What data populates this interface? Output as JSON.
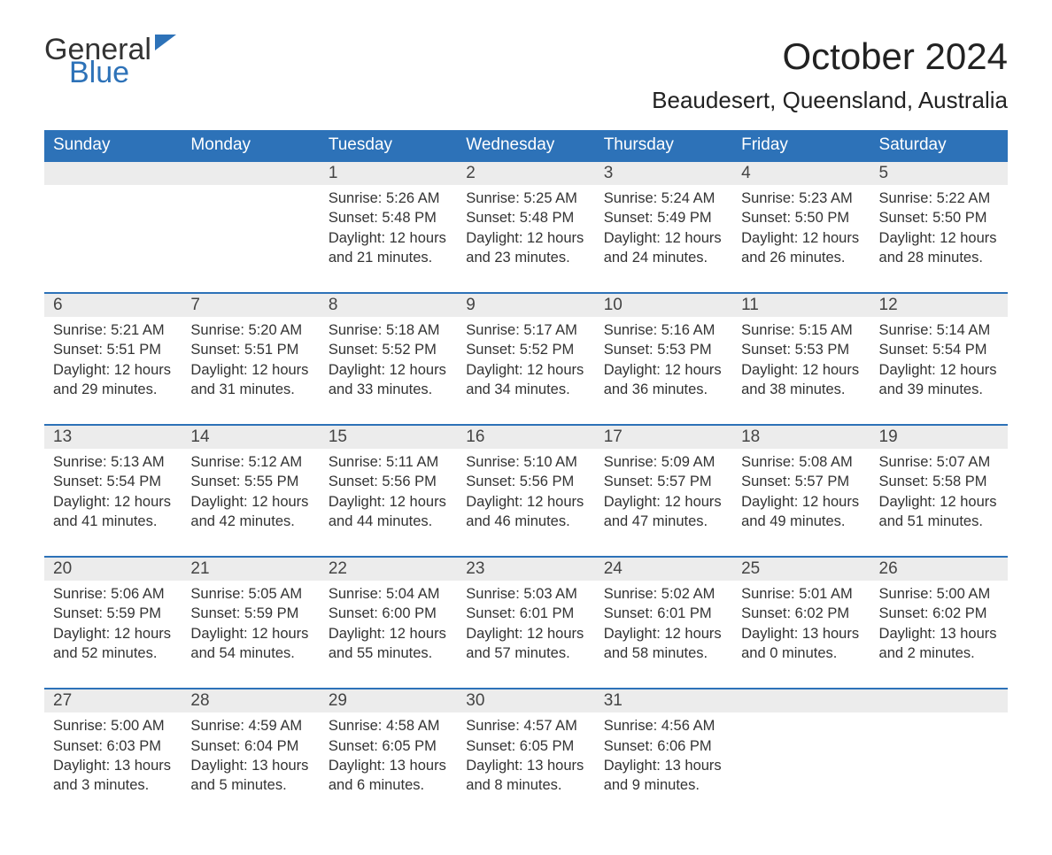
{
  "brand": {
    "word1": "General",
    "word2": "Blue"
  },
  "title": "October 2024",
  "location": "Beaudesert, Queensland, Australia",
  "colors": {
    "header_bg": "#2d72b8",
    "header_text": "#ffffff",
    "daynum_bg": "#ececec",
    "rule": "#2d72b8",
    "body_text": "#333333",
    "page_bg": "#ffffff"
  },
  "typography": {
    "title_fontsize": 42,
    "location_fontsize": 26,
    "dayhead_fontsize": 19,
    "body_fontsize": 16.5
  },
  "calendar": {
    "type": "table",
    "columns": [
      "Sunday",
      "Monday",
      "Tuesday",
      "Wednesday",
      "Thursday",
      "Friday",
      "Saturday"
    ],
    "weeks": [
      [
        null,
        null,
        {
          "n": "1",
          "sunrise": "Sunrise: 5:26 AM",
          "sunset": "Sunset: 5:48 PM",
          "d1": "Daylight: 12 hours",
          "d2": "and 21 minutes."
        },
        {
          "n": "2",
          "sunrise": "Sunrise: 5:25 AM",
          "sunset": "Sunset: 5:48 PM",
          "d1": "Daylight: 12 hours",
          "d2": "and 23 minutes."
        },
        {
          "n": "3",
          "sunrise": "Sunrise: 5:24 AM",
          "sunset": "Sunset: 5:49 PM",
          "d1": "Daylight: 12 hours",
          "d2": "and 24 minutes."
        },
        {
          "n": "4",
          "sunrise": "Sunrise: 5:23 AM",
          "sunset": "Sunset: 5:50 PM",
          "d1": "Daylight: 12 hours",
          "d2": "and 26 minutes."
        },
        {
          "n": "5",
          "sunrise": "Sunrise: 5:22 AM",
          "sunset": "Sunset: 5:50 PM",
          "d1": "Daylight: 12 hours",
          "d2": "and 28 minutes."
        }
      ],
      [
        {
          "n": "6",
          "sunrise": "Sunrise: 5:21 AM",
          "sunset": "Sunset: 5:51 PM",
          "d1": "Daylight: 12 hours",
          "d2": "and 29 minutes."
        },
        {
          "n": "7",
          "sunrise": "Sunrise: 5:20 AM",
          "sunset": "Sunset: 5:51 PM",
          "d1": "Daylight: 12 hours",
          "d2": "and 31 minutes."
        },
        {
          "n": "8",
          "sunrise": "Sunrise: 5:18 AM",
          "sunset": "Sunset: 5:52 PM",
          "d1": "Daylight: 12 hours",
          "d2": "and 33 minutes."
        },
        {
          "n": "9",
          "sunrise": "Sunrise: 5:17 AM",
          "sunset": "Sunset: 5:52 PM",
          "d1": "Daylight: 12 hours",
          "d2": "and 34 minutes."
        },
        {
          "n": "10",
          "sunrise": "Sunrise: 5:16 AM",
          "sunset": "Sunset: 5:53 PM",
          "d1": "Daylight: 12 hours",
          "d2": "and 36 minutes."
        },
        {
          "n": "11",
          "sunrise": "Sunrise: 5:15 AM",
          "sunset": "Sunset: 5:53 PM",
          "d1": "Daylight: 12 hours",
          "d2": "and 38 minutes."
        },
        {
          "n": "12",
          "sunrise": "Sunrise: 5:14 AM",
          "sunset": "Sunset: 5:54 PM",
          "d1": "Daylight: 12 hours",
          "d2": "and 39 minutes."
        }
      ],
      [
        {
          "n": "13",
          "sunrise": "Sunrise: 5:13 AM",
          "sunset": "Sunset: 5:54 PM",
          "d1": "Daylight: 12 hours",
          "d2": "and 41 minutes."
        },
        {
          "n": "14",
          "sunrise": "Sunrise: 5:12 AM",
          "sunset": "Sunset: 5:55 PM",
          "d1": "Daylight: 12 hours",
          "d2": "and 42 minutes."
        },
        {
          "n": "15",
          "sunrise": "Sunrise: 5:11 AM",
          "sunset": "Sunset: 5:56 PM",
          "d1": "Daylight: 12 hours",
          "d2": "and 44 minutes."
        },
        {
          "n": "16",
          "sunrise": "Sunrise: 5:10 AM",
          "sunset": "Sunset: 5:56 PM",
          "d1": "Daylight: 12 hours",
          "d2": "and 46 minutes."
        },
        {
          "n": "17",
          "sunrise": "Sunrise: 5:09 AM",
          "sunset": "Sunset: 5:57 PM",
          "d1": "Daylight: 12 hours",
          "d2": "and 47 minutes."
        },
        {
          "n": "18",
          "sunrise": "Sunrise: 5:08 AM",
          "sunset": "Sunset: 5:57 PM",
          "d1": "Daylight: 12 hours",
          "d2": "and 49 minutes."
        },
        {
          "n": "19",
          "sunrise": "Sunrise: 5:07 AM",
          "sunset": "Sunset: 5:58 PM",
          "d1": "Daylight: 12 hours",
          "d2": "and 51 minutes."
        }
      ],
      [
        {
          "n": "20",
          "sunrise": "Sunrise: 5:06 AM",
          "sunset": "Sunset: 5:59 PM",
          "d1": "Daylight: 12 hours",
          "d2": "and 52 minutes."
        },
        {
          "n": "21",
          "sunrise": "Sunrise: 5:05 AM",
          "sunset": "Sunset: 5:59 PM",
          "d1": "Daylight: 12 hours",
          "d2": "and 54 minutes."
        },
        {
          "n": "22",
          "sunrise": "Sunrise: 5:04 AM",
          "sunset": "Sunset: 6:00 PM",
          "d1": "Daylight: 12 hours",
          "d2": "and 55 minutes."
        },
        {
          "n": "23",
          "sunrise": "Sunrise: 5:03 AM",
          "sunset": "Sunset: 6:01 PM",
          "d1": "Daylight: 12 hours",
          "d2": "and 57 minutes."
        },
        {
          "n": "24",
          "sunrise": "Sunrise: 5:02 AM",
          "sunset": "Sunset: 6:01 PM",
          "d1": "Daylight: 12 hours",
          "d2": "and 58 minutes."
        },
        {
          "n": "25",
          "sunrise": "Sunrise: 5:01 AM",
          "sunset": "Sunset: 6:02 PM",
          "d1": "Daylight: 13 hours",
          "d2": "and 0 minutes."
        },
        {
          "n": "26",
          "sunrise": "Sunrise: 5:00 AM",
          "sunset": "Sunset: 6:02 PM",
          "d1": "Daylight: 13 hours",
          "d2": "and 2 minutes."
        }
      ],
      [
        {
          "n": "27",
          "sunrise": "Sunrise: 5:00 AM",
          "sunset": "Sunset: 6:03 PM",
          "d1": "Daylight: 13 hours",
          "d2": "and 3 minutes."
        },
        {
          "n": "28",
          "sunrise": "Sunrise: 4:59 AM",
          "sunset": "Sunset: 6:04 PM",
          "d1": "Daylight: 13 hours",
          "d2": "and 5 minutes."
        },
        {
          "n": "29",
          "sunrise": "Sunrise: 4:58 AM",
          "sunset": "Sunset: 6:05 PM",
          "d1": "Daylight: 13 hours",
          "d2": "and 6 minutes."
        },
        {
          "n": "30",
          "sunrise": "Sunrise: 4:57 AM",
          "sunset": "Sunset: 6:05 PM",
          "d1": "Daylight: 13 hours",
          "d2": "and 8 minutes."
        },
        {
          "n": "31",
          "sunrise": "Sunrise: 4:56 AM",
          "sunset": "Sunset: 6:06 PM",
          "d1": "Daylight: 13 hours",
          "d2": "and 9 minutes."
        },
        null,
        null
      ]
    ]
  }
}
